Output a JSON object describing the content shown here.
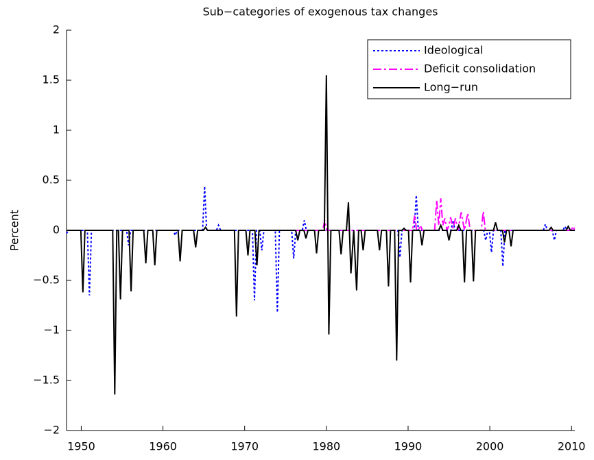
{
  "chart_data": {
    "type": "line",
    "title": "Sub−categories of exogenous tax changes",
    "y_label": "Percent",
    "xlim": [
      1948.2,
      2010.4
    ],
    "ylim": [
      -2,
      2
    ],
    "xticks": [
      1950,
      1960,
      1970,
      1980,
      1990,
      2000,
      2010
    ],
    "yticks": [
      {
        "value": -2,
        "label": "−2"
      },
      {
        "value": -1.5,
        "label": "−1.5"
      },
      {
        "value": -1,
        "label": "−1"
      },
      {
        "value": -0.5,
        "label": "−0.5"
      },
      0,
      0.5,
      1,
      1.5,
      2
    ],
    "legend": "upper right",
    "series": [
      {
        "name": "Ideological",
        "color": "#0000ff",
        "dash": "dotted",
        "x": [
          1948.2,
          1948.45,
          1950.75,
          1951.0,
          1951.25,
          1955.55,
          1955.8,
          1956.05,
          1961.25,
          1961.5,
          1961.75,
          1964.85,
          1965.1,
          1965.35,
          1966.55,
          1966.8,
          1967.05,
          1970.95,
          1971.2,
          1971.45,
          1971.85,
          1972.1,
          1972.35,
          1973.75,
          1974.0,
          1974.25,
          1975.75,
          1976.0,
          1976.25,
          1977.05,
          1977.3,
          1977.55,
          1988.75,
          1989.0,
          1989.25,
          1990.75,
          1991.0,
          1991.25,
          1995.25,
          1995.5,
          1995.75,
          1999.25,
          1999.5,
          1999.75,
          1999.95,
          2000.2,
          2000.45,
          2001.35,
          2001.6,
          2001.85,
          2006.55,
          2006.8,
          2007.05,
          2007.65,
          2007.9,
          2008.15,
          2008.95,
          2009.2,
          2009.45,
          2010.4
        ],
        "values": [
          -0.03,
          0,
          0,
          -0.65,
          0,
          0,
          -0.15,
          0,
          0,
          -0.05,
          0,
          0,
          0.44,
          0,
          0,
          0.05,
          0,
          0,
          -0.7,
          0,
          0,
          -0.2,
          0,
          0,
          -0.82,
          0,
          0,
          -0.28,
          0,
          0,
          0.1,
          0,
          0,
          -0.27,
          0,
          0,
          0.35,
          0,
          0,
          0.1,
          0,
          0,
          -0.1,
          0,
          0,
          -0.22,
          0,
          0,
          -0.36,
          0,
          0,
          0.06,
          0,
          0,
          -0.1,
          0,
          0,
          0.04,
          0,
          0
        ]
      },
      {
        "name": "Deficit consolidation",
        "color": "#ff00ff",
        "dash": "dashdot",
        "x": [
          1976.0,
          1979.55,
          1979.8,
          1980.05,
          1990.55,
          1990.8,
          1991.05,
          1991.25,
          1991.5,
          1991.75,
          1993.25,
          1993.5,
          1993.75,
          1994.0,
          1994.25,
          1994.5,
          1994.75,
          1995.0,
          1995.2,
          1995.5,
          1995.8,
          1996.1,
          1996.5,
          1996.9,
          1997.3,
          1997.6,
          1998.95,
          1999.2,
          1999.45,
          2009.95,
          2010.2,
          2010.4
        ],
        "values": [
          0,
          0,
          0.1,
          0,
          0,
          0.15,
          0,
          0,
          0.05,
          0,
          0,
          0.3,
          0.05,
          0.32,
          0.05,
          0.12,
          0,
          0.05,
          0.13,
          0.02,
          0.12,
          0,
          0.18,
          0,
          0.17,
          0,
          0,
          0.19,
          0,
          0,
          0.04,
          0
        ]
      },
      {
        "name": "Long−run",
        "color": "#000000",
        "dash": "solid",
        "x": [
          1948.2,
          1949.95,
          1950.2,
          1950.45,
          1953.85,
          1954.1,
          1954.35,
          1954.55,
          1954.8,
          1955.05,
          1955.85,
          1956.1,
          1956.35,
          1957.65,
          1957.9,
          1958.15,
          1958.75,
          1959.0,
          1959.25,
          1961.85,
          1962.1,
          1962.35,
          1963.75,
          1964.0,
          1964.25,
          1964.95,
          1965.2,
          1965.45,
          1968.75,
          1969.0,
          1969.25,
          1970.15,
          1970.4,
          1970.65,
          1971.25,
          1971.5,
          1971.75,
          1976.25,
          1976.5,
          1976.75,
          1977.25,
          1977.5,
          1977.75,
          1978.55,
          1978.8,
          1979.05,
          1979.75,
          1980.0,
          1980.3,
          1980.55,
          1981.55,
          1981.8,
          1982.05,
          1982.45,
          1982.7,
          1983.0,
          1983.35,
          1983.7,
          1983.95,
          1984.25,
          1984.5,
          1984.75,
          1986.25,
          1986.5,
          1986.75,
          1987.35,
          1987.6,
          1987.85,
          1988.35,
          1988.6,
          1988.85,
          1989.25,
          1989.5,
          1989.75,
          1990.05,
          1990.3,
          1990.55,
          1991.45,
          1991.7,
          1991.95,
          1993.75,
          1994.0,
          1994.25,
          1994.75,
          1995.0,
          1995.25,
          1995.95,
          1996.2,
          1996.45,
          1996.65,
          1996.9,
          1997.15,
          1997.75,
          1998.0,
          1998.25,
          2000.45,
          2000.7,
          2000.95,
          2001.55,
          2001.8,
          2002.05,
          2002.35,
          2002.6,
          2002.85,
          2007.25,
          2007.5,
          2007.75,
          2009.35,
          2009.6,
          2009.85,
          2010.4
        ],
        "values": [
          0,
          0,
          -0.62,
          0,
          0,
          -1.64,
          0,
          0,
          -0.69,
          0,
          0,
          -0.61,
          0,
          0,
          -0.33,
          0,
          0,
          -0.35,
          0,
          0,
          -0.31,
          0,
          0,
          -0.17,
          0,
          0,
          0.03,
          0,
          0,
          -0.86,
          0,
          0,
          -0.25,
          0,
          0,
          -0.35,
          0,
          0,
          -0.1,
          0,
          0,
          -0.08,
          0,
          0,
          -0.23,
          0,
          0,
          1.55,
          -1.04,
          0,
          0,
          -0.24,
          0,
          0,
          0.28,
          -0.43,
          0,
          -0.6,
          0,
          0,
          -0.2,
          0,
          0,
          -0.2,
          0,
          0,
          -0.56,
          0,
          0,
          -1.3,
          0,
          0,
          0.02,
          0,
          0,
          -0.52,
          0,
          0,
          -0.15,
          0,
          0,
          0.05,
          0,
          0,
          -0.1,
          0,
          0,
          0.05,
          0,
          0,
          -0.52,
          0,
          0,
          -0.51,
          0,
          0,
          0.08,
          0,
          0,
          -0.12,
          0,
          0,
          -0.16,
          0,
          0,
          0.03,
          0,
          0,
          0.04,
          0,
          0
        ]
      }
    ]
  }
}
